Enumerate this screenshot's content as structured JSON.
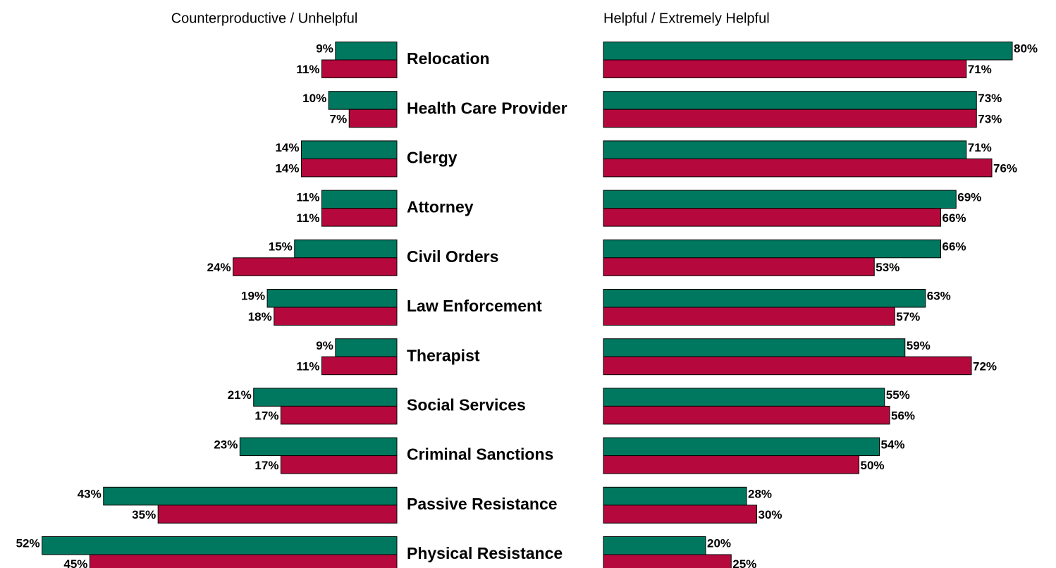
{
  "chart_data": {
    "type": "diverging_bar",
    "categories": [
      "Relocation",
      "Health Care Provider",
      "Clergy",
      "Attorney",
      "Civil Orders",
      "Law Enforcement",
      "Therapist",
      "Social Services",
      "Criminal Sanctions",
      "Passive Resistance",
      "Physical Resistance"
    ],
    "left": {
      "title": "Counterproductive / Unhelpful",
      "series": [
        {
          "color": "#00785f",
          "values": [
            9,
            10,
            14,
            11,
            15,
            19,
            9,
            21,
            23,
            43,
            52
          ],
          "value_labels": [
            "9%",
            "10%",
            "14%",
            "11%",
            "15%",
            "19%",
            "9%",
            "21%",
            "23%",
            "43%",
            "52%"
          ]
        },
        {
          "color": "#b5093e",
          "values": [
            11,
            7,
            14,
            11,
            24,
            18,
            11,
            17,
            17,
            35,
            45
          ],
          "value_labels": [
            "11%",
            "7%",
            "14%",
            "11%",
            "24%",
            "18%",
            "11%",
            "17%",
            "17%",
            "35%",
            "45%"
          ]
        }
      ]
    },
    "right": {
      "title": "Helpful / Extremely Helpful",
      "series": [
        {
          "color": "#00785f",
          "values": [
            80,
            73,
            71,
            69,
            66,
            63,
            59,
            55,
            54,
            28,
            20
          ],
          "value_labels": [
            "80%",
            "73%",
            "71%",
            "69%",
            "66%",
            "63%",
            "59%",
            "55%",
            "54%",
            "28%",
            "20%"
          ]
        },
        {
          "color": "#b5093e",
          "values": [
            71,
            73,
            76,
            66,
            53,
            57,
            72,
            56,
            50,
            30,
            25
          ],
          "value_labels": [
            "71%",
            "73%",
            "76%",
            "66%",
            "53%",
            "57%",
            "72%",
            "56%",
            "50%",
            "30%",
            "25%"
          ]
        }
      ]
    }
  }
}
